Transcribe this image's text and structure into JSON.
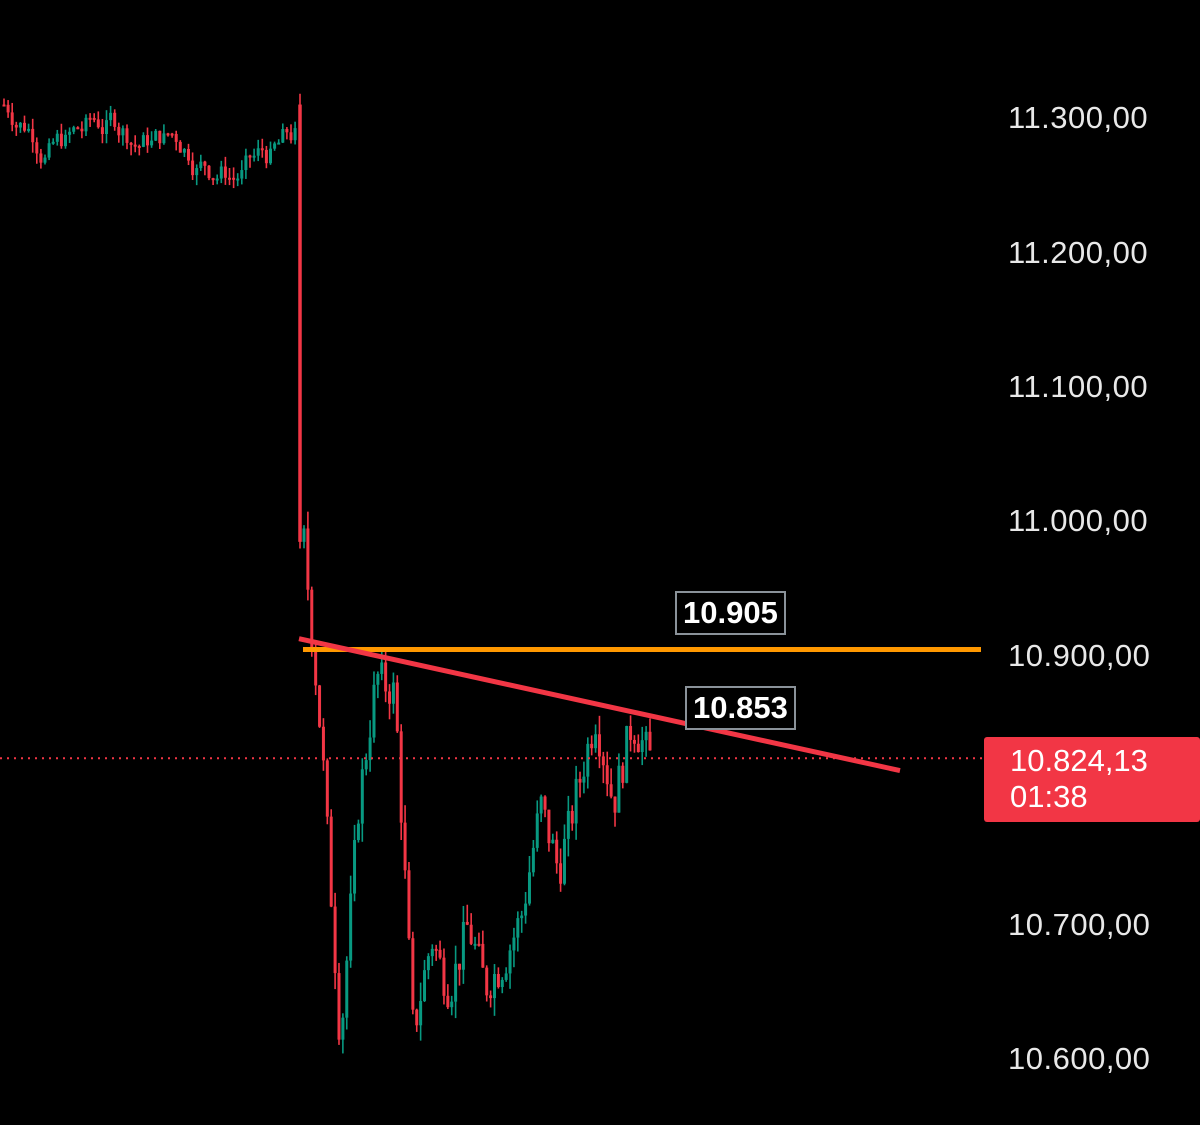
{
  "chart_data": {
    "type": "candlestick",
    "y_axis_ticks": [
      {
        "value": 11300,
        "label": "11.300,00"
      },
      {
        "value": 11200,
        "label": "11.200,00"
      },
      {
        "value": 11100,
        "label": "11.100,00"
      },
      {
        "value": 11000,
        "label": "11.000,00"
      },
      {
        "value": 10900,
        "label": "10.900,00"
      },
      {
        "value": 10700,
        "label": "10.700,00"
      },
      {
        "value": 10600,
        "label": "10.600,00"
      }
    ],
    "ylim": [
      10590,
      11370
    ],
    "grid": false,
    "horizontal_level": {
      "value": 10905,
      "label": "10.905",
      "color": "#ff9800"
    },
    "trendline": {
      "start_value": 10913,
      "end_value": 10815,
      "label": "10.853",
      "color": "#f23645"
    },
    "current_price": {
      "value": 10824.13,
      "label": "10.824,13",
      "countdown": "01:38",
      "color": "#f23645"
    },
    "up_color": "#089981",
    "down_color": "#f23645",
    "candles_before_gap": {
      "count": 72,
      "range": [
        11255,
        11325
      ]
    },
    "gap_candle": {
      "open": 11310,
      "close": 10985
    },
    "candles_after_gap_path": [
      10985,
      10830,
      10612,
      10790,
      10885,
      10872,
      10620,
      10690,
      10650,
      10700,
      10655,
      10672,
      10710,
      10790,
      10740,
      10800,
      10855,
      10790,
      10850,
      10825
    ]
  }
}
